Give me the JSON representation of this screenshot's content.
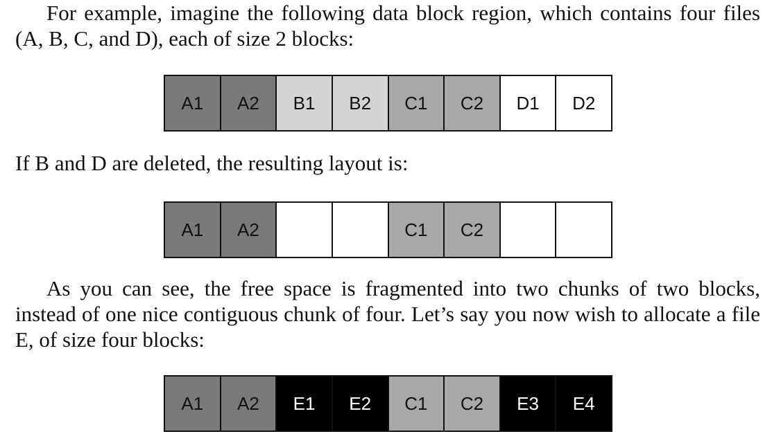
{
  "paragraphs": {
    "intro": "For example, imagine the following data block region, which contains four files (A, B, C, and D), each of size 2 blocks:",
    "after_delete": "If B and D are deleted, the resulting layout is:",
    "fragmented": "As you can see, the free space is fragmented into two chunks of two blocks, instead of one nice contiguous chunk of four. Let’s say you now wish to allocate a file E, of size four blocks:"
  },
  "colors": {
    "file_A": "#7a7a7a",
    "file_B": "#d4d4d4",
    "file_C": "#a8a8a8",
    "file_D": "#ffffff",
    "file_E": "#000000",
    "free": "#ffffff"
  },
  "layouts": [
    {
      "blocks": [
        {
          "label": "A1",
          "fill": "#7a7a7a",
          "text_color": "#111111"
        },
        {
          "label": "A2",
          "fill": "#7a7a7a",
          "text_color": "#111111"
        },
        {
          "label": "B1",
          "fill": "#d4d4d4",
          "text_color": "#111111"
        },
        {
          "label": "B2",
          "fill": "#d4d4d4",
          "text_color": "#111111"
        },
        {
          "label": "C1",
          "fill": "#a8a8a8",
          "text_color": "#111111"
        },
        {
          "label": "C2",
          "fill": "#a8a8a8",
          "text_color": "#111111"
        },
        {
          "label": "D1",
          "fill": "#ffffff",
          "text_color": "#111111"
        },
        {
          "label": "D2",
          "fill": "#ffffff",
          "text_color": "#111111"
        }
      ]
    },
    {
      "blocks": [
        {
          "label": "A1",
          "fill": "#7a7a7a",
          "text_color": "#111111"
        },
        {
          "label": "A2",
          "fill": "#7a7a7a",
          "text_color": "#111111"
        },
        {
          "label": "",
          "fill": "#ffffff",
          "text_color": "#111111"
        },
        {
          "label": "",
          "fill": "#ffffff",
          "text_color": "#111111"
        },
        {
          "label": "C1",
          "fill": "#a8a8a8",
          "text_color": "#111111"
        },
        {
          "label": "C2",
          "fill": "#a8a8a8",
          "text_color": "#111111"
        },
        {
          "label": "",
          "fill": "#ffffff",
          "text_color": "#111111"
        },
        {
          "label": "",
          "fill": "#ffffff",
          "text_color": "#111111"
        }
      ]
    },
    {
      "blocks": [
        {
          "label": "A1",
          "fill": "#7a7a7a",
          "text_color": "#111111"
        },
        {
          "label": "A2",
          "fill": "#7a7a7a",
          "text_color": "#111111"
        },
        {
          "label": "E1",
          "fill": "#000000",
          "text_color": "#ffffff"
        },
        {
          "label": "E2",
          "fill": "#000000",
          "text_color": "#ffffff"
        },
        {
          "label": "C1",
          "fill": "#a8a8a8",
          "text_color": "#111111"
        },
        {
          "label": "C2",
          "fill": "#a8a8a8",
          "text_color": "#111111"
        },
        {
          "label": "E3",
          "fill": "#000000",
          "text_color": "#ffffff"
        },
        {
          "label": "E4",
          "fill": "#000000",
          "text_color": "#ffffff"
        }
      ]
    }
  ]
}
